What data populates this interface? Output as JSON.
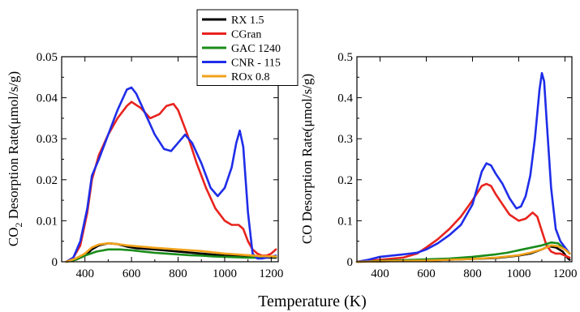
{
  "figure": {
    "xlabel": "Temperature (K)"
  },
  "legend": {
    "placement": "top-center",
    "entries": [
      {
        "name": "RX 1.5",
        "color": "#000000"
      },
      {
        "name": "CGran",
        "color": "#e8231e"
      },
      {
        "name": "GAC 1240",
        "color": "#1a8c1a"
      },
      {
        "name": "CNR - 115",
        "color": "#1f2de8"
      },
      {
        "name": "ROx 0.8",
        "color": "#f2a21a"
      }
    ]
  },
  "chart_data": [
    {
      "type": "line",
      "title": "",
      "ylabel_main": "CO",
      "ylabel_sub": "2",
      "ylabel_rest": " Desorption Rate(μmol/s/g)",
      "xlim": [
        300,
        1230
      ],
      "ylim": [
        0,
        0.05
      ],
      "xticks": [
        400,
        600,
        800,
        1000,
        1200
      ],
      "xtick_labels": [
        "400",
        "600",
        "800",
        "1000",
        "1200"
      ],
      "yticks": [
        0,
        0.01,
        0.02,
        0.03,
        0.04,
        0.05
      ],
      "ytick_labels": [
        "0",
        "0.01",
        "0.02",
        "0.03",
        "0.04",
        "0.05"
      ],
      "grid": false,
      "series": [
        {
          "name": "RX 1.5",
          "color": "#000000",
          "x": [
            320,
            360,
            400,
            430,
            460,
            500,
            540,
            580,
            620,
            700,
            800,
            900,
            1000,
            1100,
            1150,
            1200,
            1220
          ],
          "y": [
            0,
            0.0005,
            0.0015,
            0.003,
            0.004,
            0.0045,
            0.0043,
            0.0037,
            0.0033,
            0.003,
            0.0025,
            0.002,
            0.0015,
            0.0012,
            0.001,
            0.001,
            0.001
          ]
        },
        {
          "name": "CGran",
          "color": "#e8231e",
          "x": [
            320,
            350,
            380,
            410,
            430,
            460,
            500,
            540,
            580,
            600,
            640,
            680,
            720,
            750,
            780,
            800,
            840,
            880,
            920,
            960,
            1000,
            1030,
            1060,
            1080,
            1100,
            1120,
            1140,
            1160,
            1180,
            1200,
            1220
          ],
          "y": [
            0,
            0.001,
            0.004,
            0.012,
            0.02,
            0.026,
            0.031,
            0.035,
            0.038,
            0.039,
            0.0375,
            0.035,
            0.036,
            0.038,
            0.0385,
            0.037,
            0.031,
            0.024,
            0.018,
            0.013,
            0.01,
            0.009,
            0.009,
            0.008,
            0.005,
            0.003,
            0.002,
            0.0015,
            0.0015,
            0.002,
            0.003
          ]
        },
        {
          "name": "GAC 1240",
          "color": "#1a8c1a",
          "x": [
            320,
            360,
            400,
            450,
            500,
            550,
            600,
            650,
            700,
            750,
            800,
            850,
            900,
            950,
            1000,
            1050,
            1100,
            1150,
            1200,
            1220
          ],
          "y": [
            0,
            0.0005,
            0.0015,
            0.0025,
            0.003,
            0.003,
            0.0028,
            0.0025,
            0.0022,
            0.002,
            0.0018,
            0.0016,
            0.0015,
            0.0013,
            0.0012,
            0.0011,
            0.001,
            0.001,
            0.0012,
            0.0012
          ]
        },
        {
          "name": "CNR - 115",
          "color": "#1f2de8",
          "x": [
            320,
            350,
            380,
            410,
            430,
            460,
            500,
            540,
            580,
            600,
            620,
            660,
            700,
            740,
            770,
            800,
            830,
            860,
            900,
            940,
            970,
            1000,
            1030,
            1050,
            1065,
            1080,
            1100,
            1120,
            1140,
            1160,
            1180,
            1200,
            1220
          ],
          "y": [
            0,
            0.001,
            0.005,
            0.013,
            0.021,
            0.025,
            0.031,
            0.037,
            0.042,
            0.0425,
            0.041,
            0.036,
            0.031,
            0.0275,
            0.027,
            0.029,
            0.031,
            0.029,
            0.024,
            0.018,
            0.016,
            0.018,
            0.023,
            0.029,
            0.032,
            0.028,
            0.012,
            0.002,
            0.0008,
            0.0008,
            0.001,
            0.0012,
            0.0015
          ]
        },
        {
          "name": "ROx 0.8",
          "color": "#f2a21a",
          "x": [
            320,
            360,
            400,
            430,
            460,
            500,
            540,
            580,
            620,
            700,
            800,
            900,
            1000,
            1100,
            1150,
            1200,
            1220
          ],
          "y": [
            0,
            0.0008,
            0.002,
            0.0035,
            0.0042,
            0.0045,
            0.0043,
            0.004,
            0.0038,
            0.0034,
            0.003,
            0.0026,
            0.002,
            0.0016,
            0.0014,
            0.0013,
            0.0013
          ]
        }
      ]
    },
    {
      "type": "line",
      "title": "",
      "ylabel_main": "CO Desorption Rate(μmol/s/g)",
      "ylabel_sub": "",
      "ylabel_rest": "",
      "xlim": [
        300,
        1230
      ],
      "ylim": [
        0,
        0.5
      ],
      "xticks": [
        400,
        600,
        800,
        1000,
        1200
      ],
      "xtick_labels": [
        "400",
        "600",
        "800",
        "1000",
        "1200"
      ],
      "yticks": [
        0,
        0.1,
        0.2,
        0.3,
        0.4,
        0.5
      ],
      "ytick_labels": [
        "0",
        "0.1",
        "0.2",
        "0.3",
        "0.4",
        "0.5"
      ],
      "grid": false,
      "series": [
        {
          "name": "RX 1.5",
          "color": "#000000",
          "x": [
            300,
            400,
            500,
            600,
            700,
            800,
            900,
            1000,
            1050,
            1100,
            1130,
            1160,
            1190,
            1210,
            1220
          ],
          "y": [
            0,
            0.001,
            0.002,
            0.003,
            0.005,
            0.007,
            0.009,
            0.015,
            0.02,
            0.03,
            0.038,
            0.035,
            0.025,
            0.01,
            0.005
          ]
        },
        {
          "name": "CGran",
          "color": "#e8231e",
          "x": [
            300,
            400,
            500,
            560,
            600,
            650,
            700,
            750,
            800,
            840,
            860,
            880,
            900,
            930,
            960,
            1000,
            1030,
            1060,
            1080,
            1100,
            1120,
            1140,
            1160,
            1180,
            1200,
            1220
          ],
          "y": [
            0,
            0.005,
            0.01,
            0.02,
            0.035,
            0.055,
            0.08,
            0.11,
            0.15,
            0.185,
            0.19,
            0.185,
            0.165,
            0.14,
            0.115,
            0.1,
            0.105,
            0.12,
            0.11,
            0.075,
            0.04,
            0.025,
            0.02,
            0.02,
            0.015,
            0.01
          ]
        },
        {
          "name": "GAC 1240",
          "color": "#1a8c1a",
          "x": [
            300,
            400,
            500,
            600,
            700,
            800,
            900,
            950,
            1000,
            1050,
            1100,
            1140,
            1170,
            1200,
            1220
          ],
          "y": [
            0,
            0.002,
            0.004,
            0.006,
            0.008,
            0.012,
            0.018,
            0.022,
            0.028,
            0.034,
            0.04,
            0.047,
            0.045,
            0.03,
            0.02
          ]
        },
        {
          "name": "CNR - 115",
          "color": "#1f2de8",
          "x": [
            300,
            350,
            400,
            450,
            500,
            560,
            600,
            650,
            700,
            750,
            800,
            840,
            860,
            880,
            900,
            930,
            960,
            990,
            1010,
            1030,
            1050,
            1070,
            1090,
            1100,
            1110,
            1120,
            1140,
            1160,
            1180,
            1200,
            1220
          ],
          "y": [
            0,
            0.005,
            0.012,
            0.015,
            0.018,
            0.022,
            0.03,
            0.045,
            0.065,
            0.09,
            0.14,
            0.22,
            0.24,
            0.235,
            0.215,
            0.19,
            0.155,
            0.13,
            0.135,
            0.16,
            0.21,
            0.3,
            0.42,
            0.46,
            0.44,
            0.35,
            0.18,
            0.08,
            0.05,
            0.035,
            0.02
          ]
        },
        {
          "name": "ROx 0.8",
          "color": "#f2a21a",
          "x": [
            300,
            400,
            500,
            600,
            700,
            800,
            900,
            1000,
            1050,
            1100,
            1140,
            1170,
            1200,
            1220
          ],
          "y": [
            0,
            0.001,
            0.002,
            0.003,
            0.005,
            0.007,
            0.01,
            0.016,
            0.022,
            0.03,
            0.04,
            0.038,
            0.03,
            0.02
          ]
        }
      ]
    }
  ]
}
